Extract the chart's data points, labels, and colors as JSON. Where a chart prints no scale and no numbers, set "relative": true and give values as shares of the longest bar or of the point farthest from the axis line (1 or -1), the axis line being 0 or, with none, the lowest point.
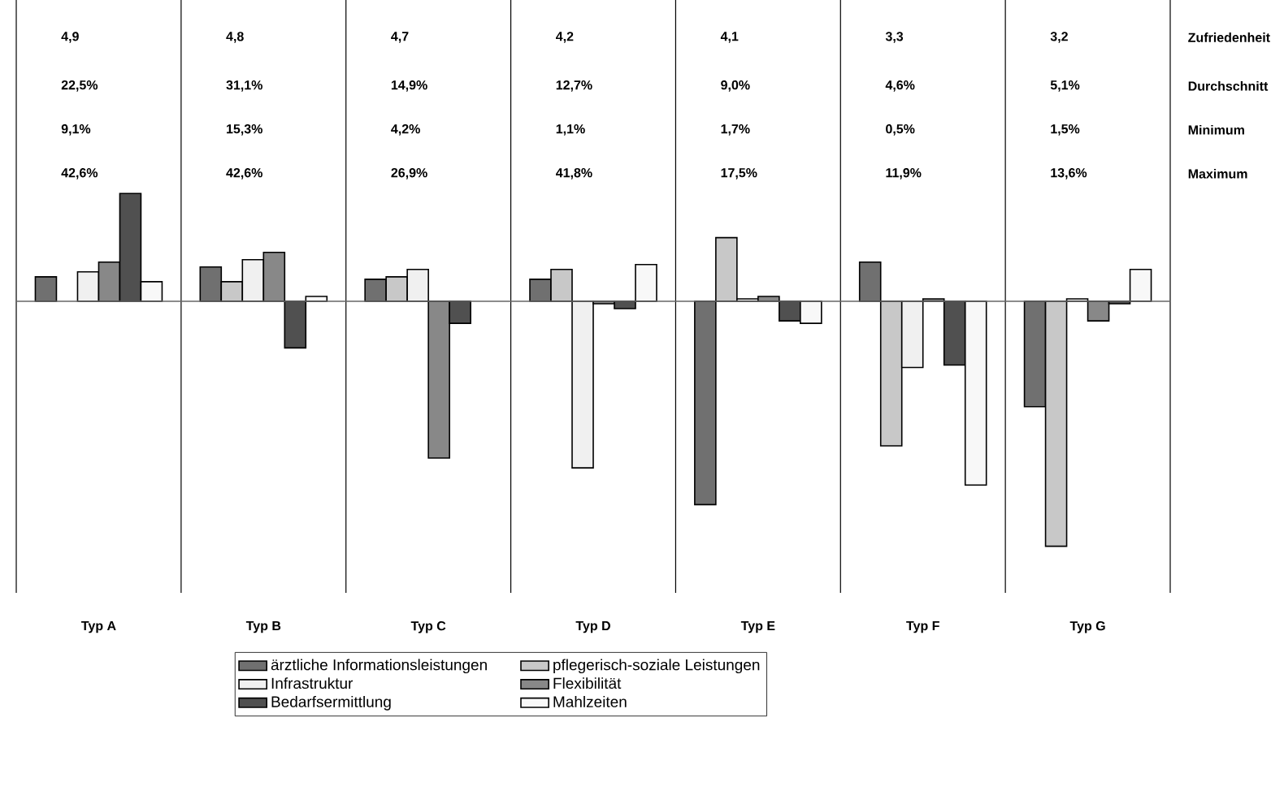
{
  "chart_data": {
    "type": "bar",
    "relative": true,
    "legend": "bottom",
    "categories": [
      "Typ A",
      "Typ B",
      "Typ C",
      "Typ D",
      "Typ E",
      "Typ F",
      "Typ G"
    ],
    "series": [
      {
        "name": "ärztliche Informationsleistungen",
        "color": "#707070",
        "values": [
          0.1,
          0.14,
          0.09,
          0.09,
          -0.83,
          0.16,
          -0.43
        ]
      },
      {
        "name": "pflegerisch-soziale Leistungen",
        "color": "#c8c8c8",
        "values": [
          null,
          0.08,
          0.1,
          0.13,
          0.26,
          -0.59,
          -1
        ]
      },
      {
        "name": "Infrastruktur",
        "color": "#f0f0f0",
        "values": [
          0.12,
          0.17,
          0.13,
          -0.68,
          0.01,
          -0.27,
          0.01
        ]
      },
      {
        "name": "Flexibilität",
        "color": "#888888",
        "values": [
          0.16,
          0.2,
          -0.64,
          -0.01,
          0.02,
          0.01,
          -0.08
        ]
      },
      {
        "name": "Bedarfsermittlung",
        "color": "#505050",
        "values": [
          0.44,
          -0.19,
          -0.09,
          -0.03,
          -0.08,
          -0.26,
          -0.01
        ]
      },
      {
        "name": "Mahlzeiten",
        "color": "#f8f8f8",
        "values": [
          0.08,
          0.02,
          null,
          0.15,
          -0.09,
          -0.75,
          0.13
        ]
      }
    ],
    "annotations": [
      "4,9",
      "4,8",
      "4,7",
      "4,2",
      "4,1",
      "3,3",
      "3,2",
      "Zufriedenheit",
      "22,5%",
      "31,1%",
      "14,9%",
      "12,7%",
      "9,0%",
      "4,6%",
      "5,1%",
      "Durchschnitt",
      "9,1%",
      "15,3%",
      "4,2%",
      "1,1%",
      "1,7%",
      "0,5%",
      "1,5%",
      "Minimum",
      "42,6%",
      "42,6%",
      "26,9%",
      "41,8%",
      "17,5%",
      "11,9%",
      "13,6%",
      "Maximum"
    ]
  }
}
